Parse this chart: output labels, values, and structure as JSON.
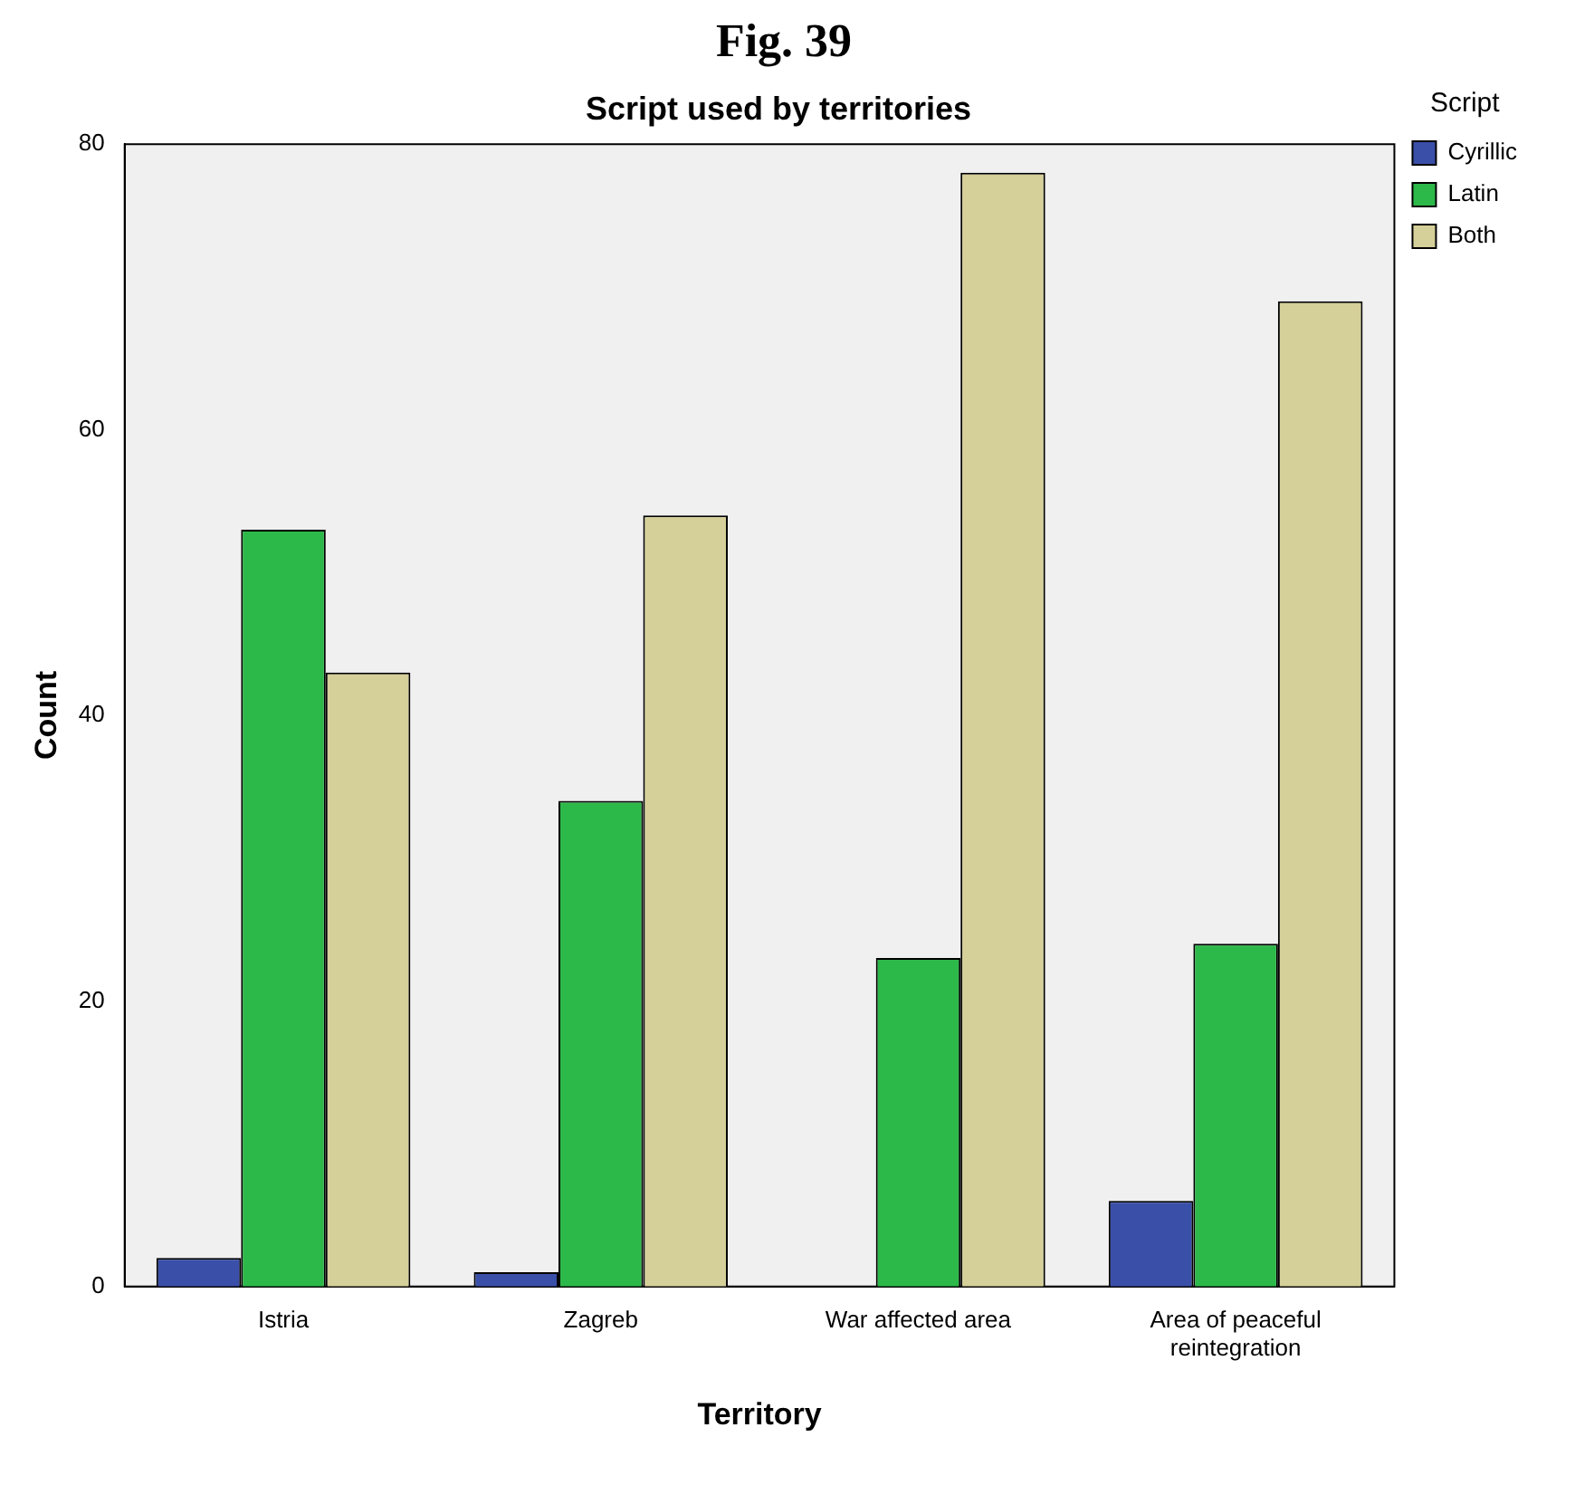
{
  "chart_data": {
    "type": "bar",
    "title": "Fig. 39",
    "subtitle": "Script used by territories",
    "xlabel": "Territory",
    "ylabel": "Count",
    "legend_title": "Script",
    "categories": [
      "Istria",
      "Zagreb",
      "War affected area",
      "Area of peaceful reintegration"
    ],
    "series": [
      {
        "name": "Cyrillic",
        "color": "#3a4fa8",
        "values": [
          2,
          1,
          0,
          6
        ]
      },
      {
        "name": "Latin",
        "color": "#2db84a",
        "values": [
          53,
          34,
          23,
          24
        ]
      },
      {
        "name": "Both",
        "color": "#d5cf99",
        "values": [
          43,
          54,
          78,
          69
        ]
      }
    ],
    "ylim": [
      0,
      80
    ],
    "yticks": [
      0,
      20,
      40,
      60,
      80
    ],
    "grid": false,
    "legend": "top right"
  }
}
